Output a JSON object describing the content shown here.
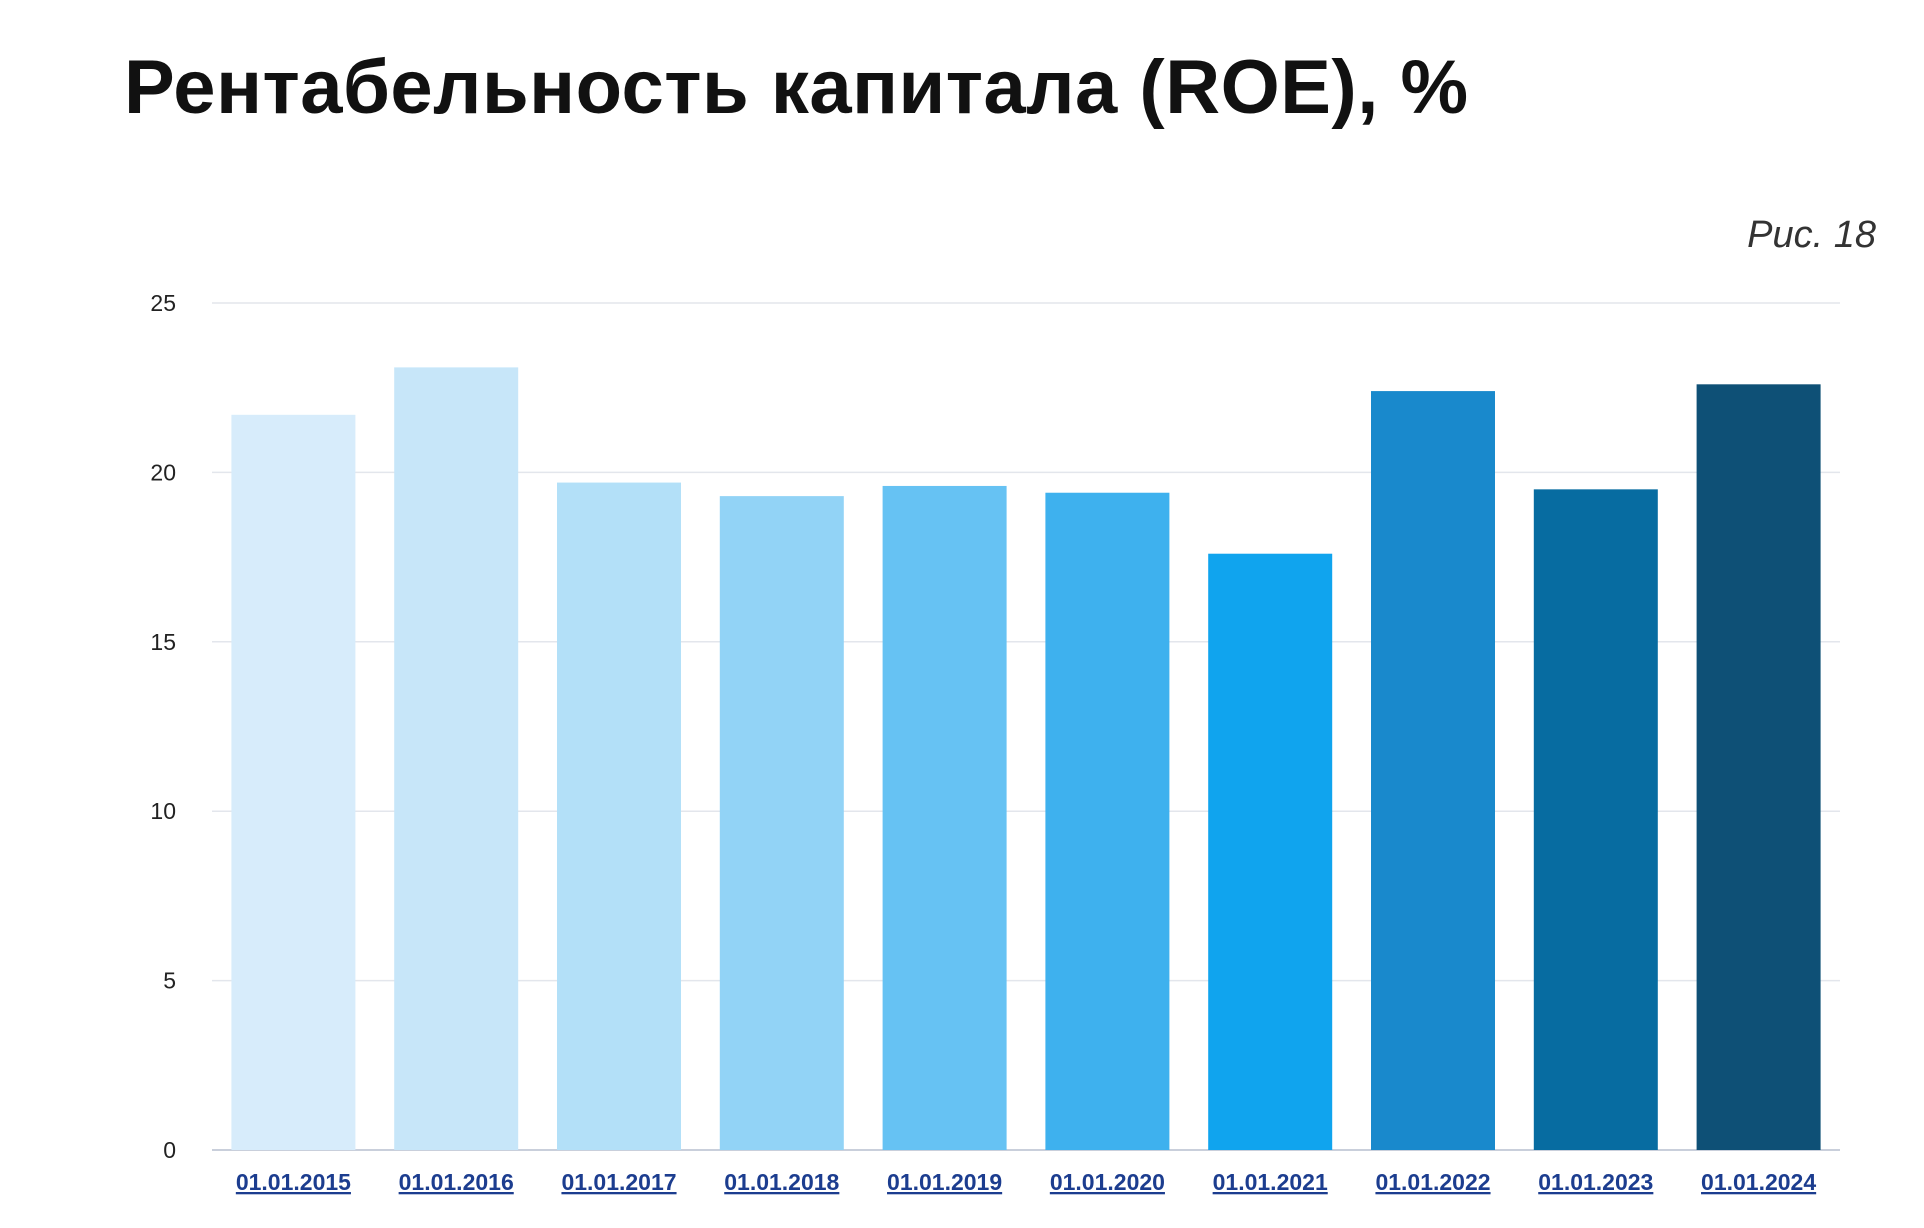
{
  "page": {
    "title": "Рентабельность капитала (ROE), %",
    "figure_label": "Рис. 18"
  },
  "chart_data": {
    "type": "bar",
    "title": "Рентабельность капитала (ROE), %",
    "xlabel": "",
    "ylabel": "",
    "ylim": [
      0,
      25
    ],
    "yticks": [
      0,
      5,
      10,
      15,
      20,
      25
    ],
    "grid": true,
    "categories": [
      "01.01.2015",
      "01.01.2016",
      "01.01.2017",
      "01.01.2018",
      "01.01.2019",
      "01.01.2020",
      "01.01.2021",
      "01.01.2022",
      "01.01.2023",
      "01.01.2024"
    ],
    "values": [
      21.7,
      23.1,
      19.7,
      19.3,
      19.6,
      19.4,
      17.6,
      22.4,
      19.5,
      22.6
    ],
    "colors": [
      "#d7ecfb",
      "#c7e6f9",
      "#b3e0f8",
      "#92d3f6",
      "#66c2f3",
      "#3eb1ee",
      "#10a4ee",
      "#1989cc",
      "#076ca1",
      "#0e5076"
    ],
    "category_label_color": "#1c3d8f"
  }
}
